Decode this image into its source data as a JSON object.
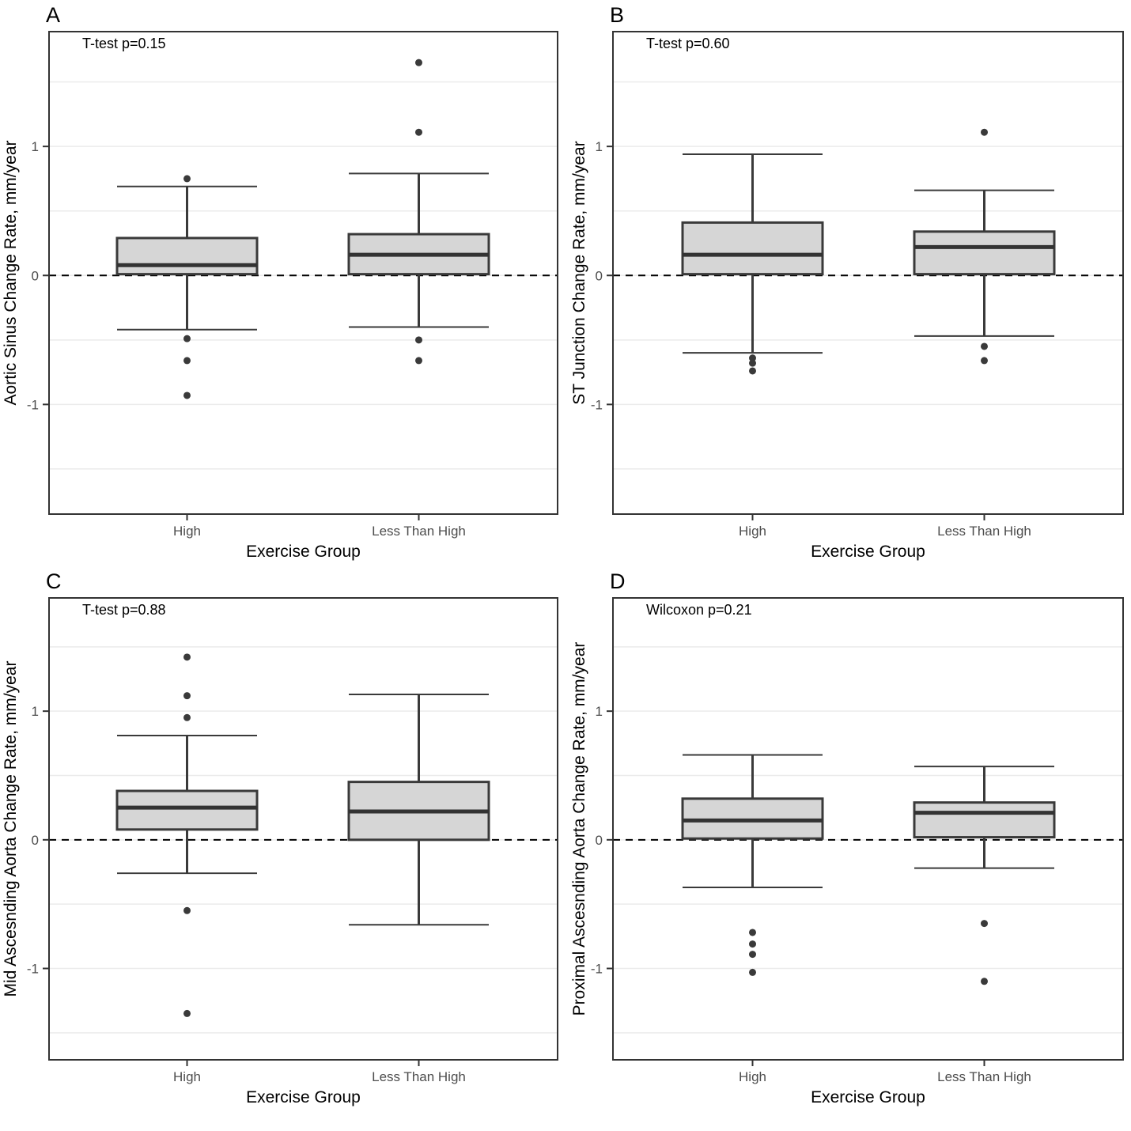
{
  "figure": {
    "title": "",
    "colors": {
      "background": "#ffffff",
      "box_fill": "#d6d6d6",
      "box_border": "#3a3a3a",
      "median": "#333333",
      "whisker": "#3a3a3a",
      "outlier": "#3a3a3a",
      "gridline": "#ebebeb",
      "panel_border": "#333333",
      "zero_line": "#000000",
      "tick_mark": "#333333",
      "tick_label": "#4d4d4d",
      "axis_title": "#000000"
    }
  },
  "chart_data": [
    {
      "panel": "A",
      "type": "boxplot",
      "annotation": "T-test p=0.15",
      "ylabel": "Aortic Sinus Change Rate, mm/year",
      "xlabel": "Exercise Group",
      "categories": [
        "High",
        "Less Than High"
      ],
      "yticks": [
        1,
        0,
        -1
      ],
      "ylim": [
        -1.85,
        1.89
      ],
      "grid_step": 0.5,
      "zero_reference_line": 0,
      "legend": "none",
      "series": [
        {
          "category": "High",
          "q1": 0.01,
          "median": 0.08,
          "q3": 0.29,
          "whisker_low": -0.42,
          "whisker_high": 0.69,
          "outliers": [
            0.75,
            -0.49,
            -0.66,
            -0.93
          ]
        },
        {
          "category": "Less Than High",
          "q1": 0.01,
          "median": 0.16,
          "q3": 0.32,
          "whisker_low": -0.4,
          "whisker_high": 0.79,
          "outliers": [
            1.65,
            1.11,
            -0.5,
            -0.66
          ]
        }
      ]
    },
    {
      "panel": "B",
      "type": "boxplot",
      "annotation": "T-test p=0.60",
      "ylabel": "ST Junction Change Rate, mm/year",
      "xlabel": "Exercise Group",
      "categories": [
        "High",
        "Less Than High"
      ],
      "yticks": [
        1,
        0,
        -1
      ],
      "ylim": [
        -1.85,
        1.89
      ],
      "grid_step": 0.5,
      "zero_reference_line": 0,
      "legend": "none",
      "series": [
        {
          "category": "High",
          "q1": 0.01,
          "median": 0.16,
          "q3": 0.41,
          "whisker_low": -0.6,
          "whisker_high": 0.94,
          "outliers": [
            -0.64,
            -0.68,
            -0.74
          ]
        },
        {
          "category": "Less Than High",
          "q1": 0.01,
          "median": 0.22,
          "q3": 0.34,
          "whisker_low": -0.47,
          "whisker_high": 0.66,
          "outliers": [
            1.11,
            -0.55,
            -0.66
          ]
        }
      ]
    },
    {
      "panel": "C",
      "type": "boxplot",
      "annotation": "T-test p=0.88",
      "ylabel": "Mid Ascesnding Aorta Change Rate, mm/year",
      "xlabel": "Exercise Group",
      "categories": [
        "High",
        "Less Than High"
      ],
      "yticks": [
        1,
        0,
        -1
      ],
      "ylim": [
        -1.71,
        1.88
      ],
      "grid_step": 0.5,
      "zero_reference_line": 0,
      "legend": "none",
      "series": [
        {
          "category": "High",
          "q1": 0.08,
          "median": 0.25,
          "q3": 0.38,
          "whisker_low": -0.26,
          "whisker_high": 0.81,
          "outliers": [
            1.42,
            1.12,
            0.95,
            -0.55,
            -1.35
          ]
        },
        {
          "category": "Less Than High",
          "q1": 0.0,
          "median": 0.22,
          "q3": 0.45,
          "whisker_low": -0.66,
          "whisker_high": 1.13,
          "outliers": []
        }
      ]
    },
    {
      "panel": "D",
      "type": "boxplot",
      "annotation": "Wilcoxon p=0.21",
      "ylabel": "Proximal Ascesnding Aorta Change Rate, mm/year",
      "xlabel": "Exercise Group",
      "categories": [
        "High",
        "Less Than High"
      ],
      "yticks": [
        1,
        0,
        -1
      ],
      "ylim": [
        -1.71,
        1.88
      ],
      "grid_step": 0.5,
      "zero_reference_line": 0,
      "legend": "none",
      "series": [
        {
          "category": "High",
          "q1": 0.01,
          "median": 0.15,
          "q3": 0.32,
          "whisker_low": -0.37,
          "whisker_high": 0.66,
          "outliers": [
            -0.72,
            -0.81,
            -0.89,
            -1.03
          ]
        },
        {
          "category": "Less Than High",
          "q1": 0.02,
          "median": 0.21,
          "q3": 0.29,
          "whisker_low": -0.22,
          "whisker_high": 0.57,
          "outliers": [
            -0.65,
            -1.1
          ]
        }
      ]
    }
  ]
}
